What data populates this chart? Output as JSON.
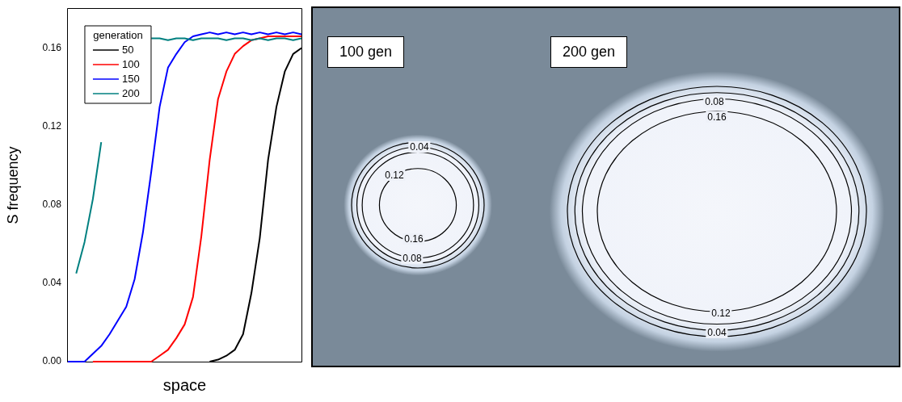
{
  "chart_data": [
    {
      "type": "line",
      "xlabel": "space",
      "ylabel": "S frequency",
      "legend_title": "generation",
      "legend": "top left",
      "grid": false,
      "tick_labels": "y",
      "marker": "none",
      "line_style": "solid",
      "categories": [
        null,
        null,
        null,
        null,
        null,
        null,
        null,
        null,
        null,
        null,
        null,
        null,
        null,
        null,
        null,
        null,
        null,
        null,
        null,
        null,
        null,
        null,
        null,
        null,
        null,
        null,
        null,
        null,
        null
      ],
      "ylim": [
        0,
        0.18
      ],
      "yticks": [
        {
          "value": 0,
          "label": "0.00"
        },
        0.04,
        0.08,
        0.12,
        0.16
      ],
      "series": [
        {
          "name": "50",
          "color": "#000000",
          "values": [
            null,
            null,
            null,
            null,
            null,
            null,
            null,
            null,
            null,
            null,
            null,
            null,
            null,
            null,
            null,
            null,
            null,
            0,
            0.001,
            0.003,
            0.006,
            0.014,
            0.035,
            0.063,
            0.103,
            0.13,
            0.148,
            0.157,
            0.16
          ]
        },
        {
          "name": "100",
          "color": "#ff0000",
          "values": [
            null,
            null,
            null,
            0,
            0,
            0,
            0,
            0,
            0,
            0,
            0,
            0.003,
            0.006,
            0.012,
            0.019,
            0.033,
            0.064,
            0.103,
            0.134,
            0.148,
            0.157,
            0.161,
            0.164,
            0.165,
            0.166,
            0.166,
            0.166,
            0.166,
            0.166
          ]
        },
        {
          "name": "150",
          "color": "#0000ff",
          "values": [
            0,
            0,
            0,
            0.004,
            0.008,
            0.014,
            0.021,
            0.028,
            0.042,
            0.066,
            0.097,
            0.13,
            0.15,
            0.157,
            0.163,
            0.166,
            0.167,
            0.168,
            0.167,
            0.168,
            0.167,
            0.168,
            0.167,
            0.168,
            0.167,
            0.168,
            0.167,
            0.168,
            0.167
          ]
        },
        {
          "name": "200",
          "color": "#008080",
          "values": [
            null,
            0.045,
            0.061,
            0.083,
            0.112,
            null,
            null,
            null,
            null,
            null,
            0.165,
            0.165,
            0.164,
            0.165,
            0.165,
            0.164,
            0.165,
            0.165,
            0.165,
            0.164,
            0.165,
            0.165,
            0.164,
            0.165,
            0.164,
            0.165,
            0.165,
            0.164,
            0.165
          ]
        }
      ]
    },
    {
      "type": "other",
      "annotations": [
        "100 gen",
        "200 gen",
        "0.04",
        "0.12",
        "0.16",
        "0.08",
        "0.08",
        "0.16",
        "0.12",
        "0.04"
      ]
    }
  ]
}
